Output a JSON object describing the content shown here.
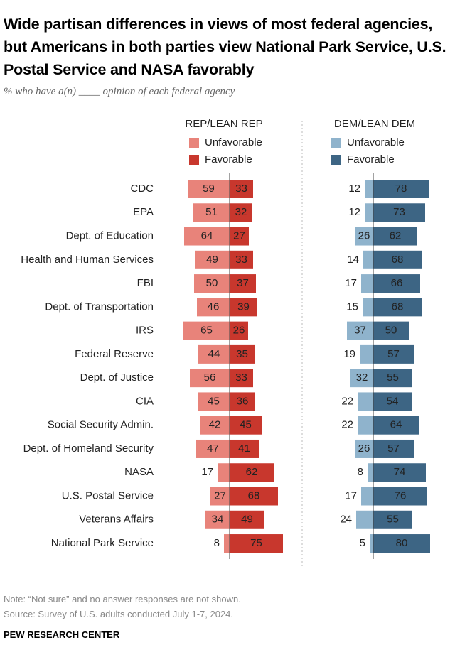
{
  "chart_data": {
    "type": "diverging-bar",
    "title": "Wide partisan differences in views of most federal agencies, but Americans in both parties view National Park Service, U.S. Postal Service and NASA favorably",
    "subtitle": "% who have a(n) ____ opinion of each federal agency",
    "categories": [
      "CDC",
      "EPA",
      "Dept. of Education",
      "Health and Human Services",
      "FBI",
      "Dept. of Transportation",
      "IRS",
      "Federal Reserve",
      "Dept. of Justice",
      "CIA",
      "Social Security Admin.",
      "Dept. of Homeland Security",
      "NASA",
      "U.S. Postal Service",
      "Veterans Affairs",
      "National Park Service"
    ],
    "panels": [
      {
        "title": "REP/LEAN REP",
        "series": [
          {
            "name": "Unfavorable",
            "color": "#e8837a",
            "values": [
              59,
              51,
              64,
              49,
              50,
              46,
              65,
              44,
              56,
              45,
              42,
              47,
              17,
              27,
              34,
              8
            ]
          },
          {
            "name": "Favorable",
            "color": "#c8372d",
            "values": [
              33,
              32,
              27,
              33,
              37,
              39,
              26,
              35,
              33,
              36,
              45,
              41,
              62,
              68,
              49,
              75
            ]
          }
        ]
      },
      {
        "title": "DEM/LEAN DEM",
        "series": [
          {
            "name": "Unfavorable",
            "color": "#8fb3cc",
            "values": [
              12,
              12,
              26,
              14,
              17,
              15,
              37,
              19,
              32,
              22,
              22,
              26,
              8,
              17,
              24,
              5
            ]
          },
          {
            "name": "Favorable",
            "color": "#3d6584",
            "values": [
              78,
              73,
              62,
              68,
              66,
              68,
              50,
              57,
              55,
              54,
              64,
              57,
              74,
              76,
              55,
              80
            ]
          }
        ]
      }
    ]
  },
  "note": "Note: “Not sure” and no answer responses are not shown.",
  "source": "Source: Survey of U.S. adults conducted July 1-7, 2024.",
  "footer": "PEW RESEARCH CENTER"
}
